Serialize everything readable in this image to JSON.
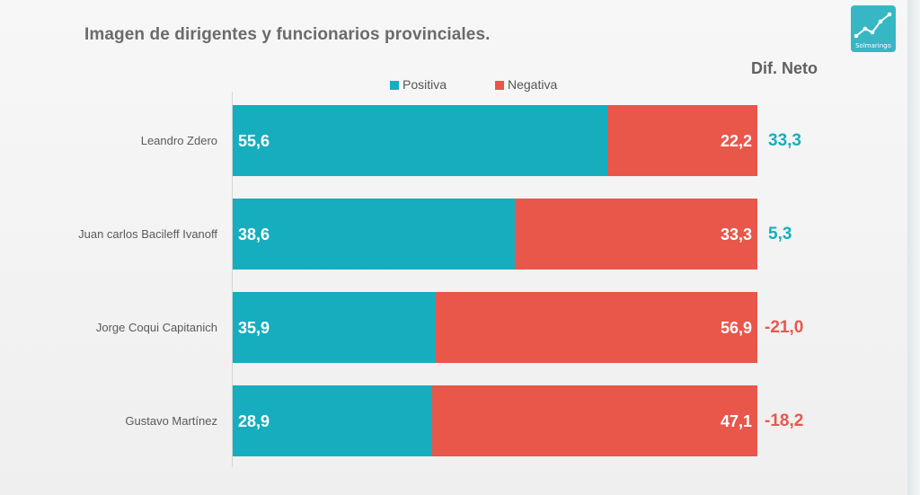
{
  "title": "Imagen de dirigentes y funcionarios provinciales.",
  "logo": {
    "text": "Solmaringo",
    "icon": "rising-line-chart-icon",
    "color": "#37b7c4"
  },
  "diff_header": "Dif. Neto",
  "colors": {
    "positive": "#16aebe",
    "negative": "#e8574a"
  },
  "chart_data": {
    "type": "bar",
    "orientation": "horizontal",
    "stacked": true,
    "title": "Imagen de dirigentes y funcionarios provinciales.",
    "categories": [
      "Leandro Zdero",
      "Juan carlos Bacileff Ivanoff",
      "Jorge Coqui Capitanich",
      "Gustavo Martínez"
    ],
    "series": [
      {
        "name": "Positiva",
        "values": [
          55.6,
          38.6,
          35.9,
          28.9
        ],
        "labels": [
          "55,6",
          "38,6",
          "35,9",
          "28,9"
        ],
        "color": "#16aebe"
      },
      {
        "name": "Negativa",
        "values": [
          22.2,
          33.3,
          56.9,
          47.1
        ],
        "labels": [
          "22,2",
          "33,3",
          "56,9",
          "47,1"
        ],
        "color": "#e8574a"
      }
    ],
    "net_difference": {
      "header": "Dif. Neto",
      "values": [
        33.3,
        5.3,
        -21.0,
        -18.2
      ],
      "labels": [
        "33,3",
        "5,3",
        "-21,0",
        "-18,2"
      ]
    },
    "legend": "top",
    "grid": false,
    "xlabel": "",
    "ylabel": ""
  }
}
